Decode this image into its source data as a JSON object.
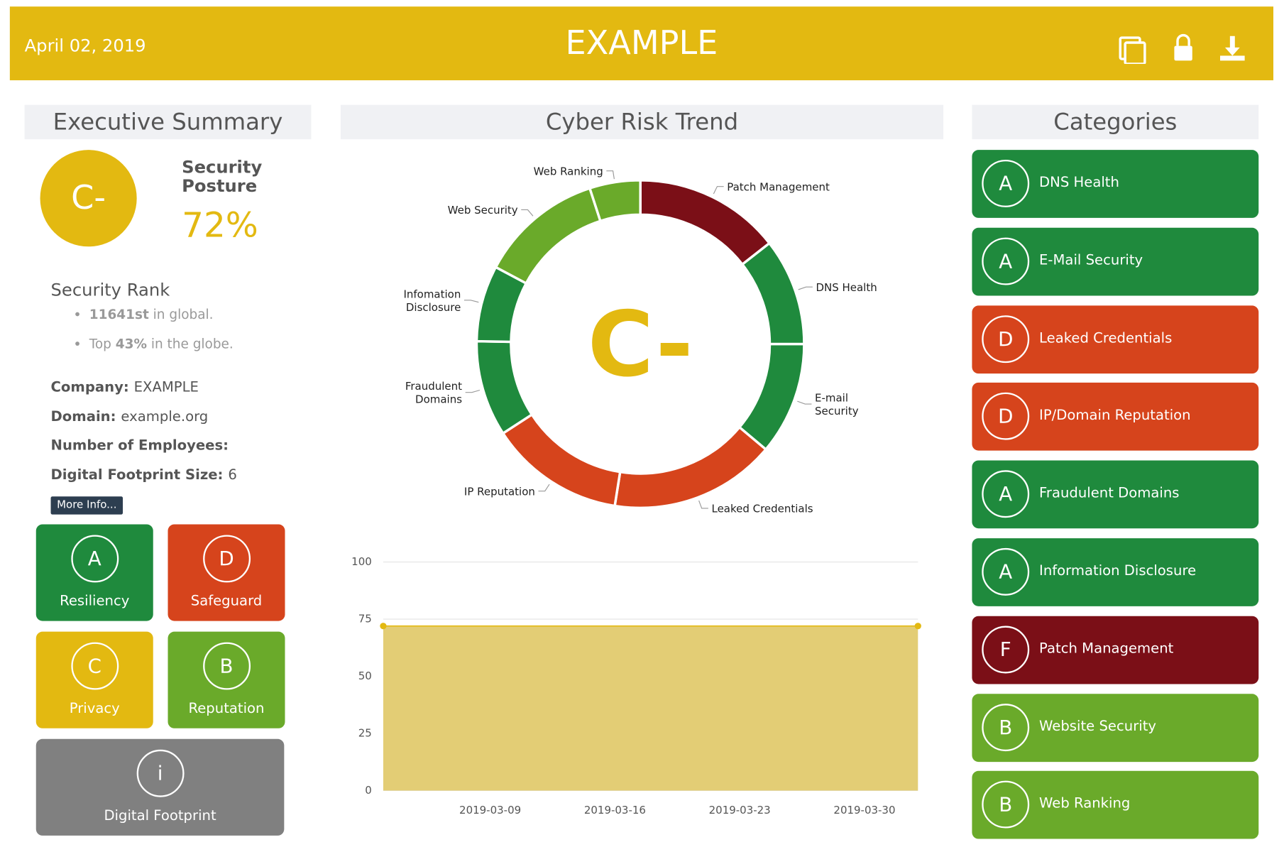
{
  "header": {
    "date": "April 02, 2019",
    "title": "EXAMPLE"
  },
  "summary": {
    "title": "Executive Summary",
    "grade": "C-",
    "posture_label": "Security Posture",
    "posture": "72%",
    "rank_title": "Security Rank",
    "rank": {
      "global": "11641st",
      "global_suffix": "in global.",
      "top_prefix": "Top",
      "top": "43%",
      "top_suffix": "in the globe."
    },
    "fields": [
      {
        "label": "Company:",
        "value": "EXAMPLE"
      },
      {
        "label": "Domain:",
        "value": "example.org"
      },
      {
        "label": "Number of Employees:"
      },
      {
        "label": "Digital Footprint Size:",
        "value": "6"
      }
    ],
    "button": "More Info...",
    "tiles": [
      {
        "grade": "A",
        "label": "Resiliency",
        "color": "#1f8a3d"
      },
      {
        "grade": "D",
        "label": "Safeguard",
        "color": "#d6441c"
      },
      {
        "grade": "C",
        "label": "Privacy",
        "color": "#e3b911"
      },
      {
        "grade": "B",
        "label": "Reputation",
        "color": "#6aaa2a"
      },
      {
        "grade": "i",
        "label": "Digital Footprint",
        "color": "#808080"
      }
    ]
  },
  "trend": {
    "title": "Cyber Risk Trend",
    "donut": {
      "type": "pie",
      "grade": "C-",
      "grade_color": "#e3b911",
      "labels": [
        [
          "Patch Management"
        ],
        [
          "DNS Health"
        ],
        [
          "E-mail",
          "Security"
        ],
        [
          "Leaked Credentials"
        ],
        [
          "IP Reputation"
        ],
        [
          "Fraudulent",
          "Domains"
        ],
        [
          "Infomation",
          "Disclosure"
        ],
        [
          "Web Security"
        ],
        [
          "Web Ranking"
        ]
      ],
      "values": [
        52,
        38,
        40,
        59,
        48,
        34,
        27,
        44,
        18
      ],
      "colors": [
        "#7b0f17",
        "#1f8a3d",
        "#1f8a3d",
        "#d6441c",
        "#d6441c",
        "#1f8a3d",
        "#1f8a3d",
        "#6aaa2a",
        "#6aaa2a"
      ]
    },
    "area": {
      "type": "area",
      "x": [
        "2019-03-03",
        "2019-04-02"
      ],
      "values": [
        72,
        72
      ],
      "color": "#e3cd75",
      "line_color": "#e3b911",
      "xlim": [
        "2019-03-03",
        "2019-04-02"
      ],
      "xticks": [
        "2019-03-09",
        "2019-03-16",
        "2019-03-23",
        "2019-03-30"
      ],
      "ylim": [
        0,
        100
      ],
      "yticks": [
        0,
        25,
        50,
        75,
        100
      ],
      "grid": true
    }
  },
  "categories": {
    "title": "Categories",
    "items": [
      {
        "grade": "A",
        "name": "DNS Health",
        "color": "#1f8a3d"
      },
      {
        "grade": "A",
        "name": "E-Mail Security",
        "color": "#1f8a3d"
      },
      {
        "grade": "D",
        "name": "Leaked Credentials",
        "color": "#d6441c"
      },
      {
        "grade": "D",
        "name": "IP/Domain Reputation",
        "color": "#d6441c"
      },
      {
        "grade": "A",
        "name": "Fraudulent Domains",
        "color": "#1f8a3d"
      },
      {
        "grade": "A",
        "name": "Information Disclosure",
        "color": "#1f8a3d"
      },
      {
        "grade": "F",
        "name": "Patch Management",
        "color": "#7b0f17"
      },
      {
        "grade": "B",
        "name": "Website Security",
        "color": "#6aaa2a"
      },
      {
        "grade": "B",
        "name": "Web Ranking",
        "color": "#6aaa2a"
      }
    ]
  }
}
